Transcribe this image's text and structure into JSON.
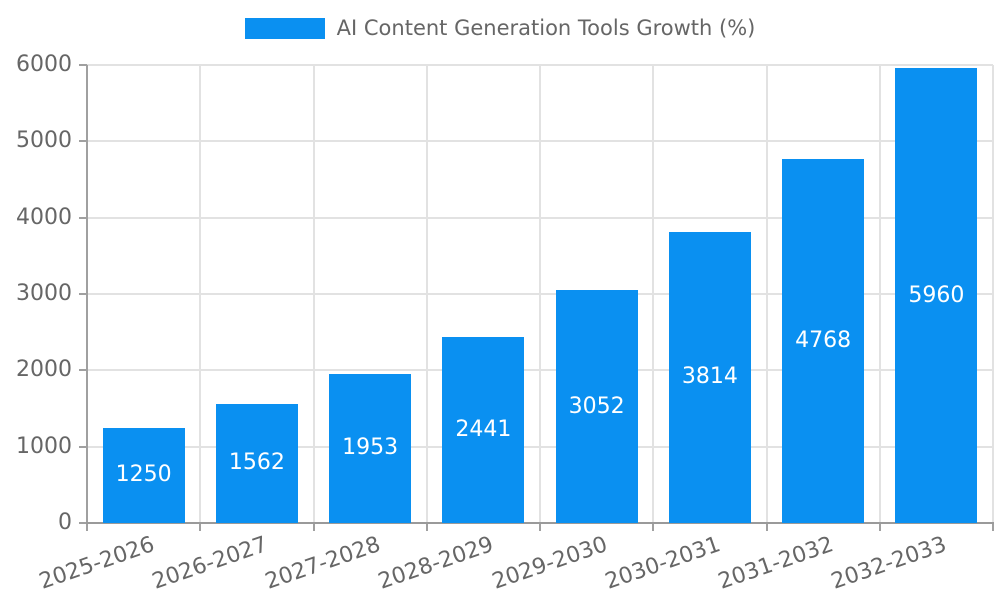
{
  "legend": {
    "label": "AI Content Generation Tools Growth (%)"
  },
  "chart_data": {
    "type": "bar",
    "title": "AI Content Generation Tools Growth (%)",
    "categories": [
      "2025-2026",
      "2026-2027",
      "2027-2028",
      "2028-2029",
      "2029-2030",
      "2030-2031",
      "2031-2032",
      "2032-2033"
    ],
    "values": [
      1250,
      1562,
      1953,
      2441,
      3052,
      3814,
      4768,
      5960
    ],
    "bar_value_labels": [
      "1250",
      "1562",
      "1953",
      "2441",
      "3052",
      "3814",
      "4768",
      "5960"
    ],
    "xlabel": "",
    "ylabel": "",
    "ylim": [
      0,
      6000
    ],
    "yticks": [
      0,
      1000,
      2000,
      3000,
      4000,
      5000,
      6000
    ],
    "grid": true,
    "legend_position": "top-center",
    "colors": {
      "bar": "#0a90f1",
      "text": "#666666",
      "bar_label_text": "#ffffff",
      "gridline": "#e2e2e2",
      "axis": "#a0a0a0",
      "background": "#ffffff"
    }
  }
}
